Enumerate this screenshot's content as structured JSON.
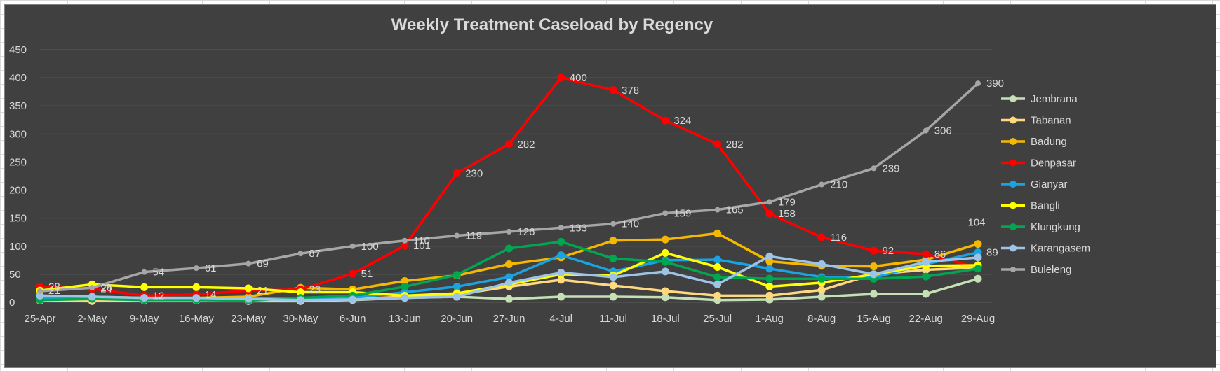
{
  "chart_data": {
    "type": "line",
    "title": "Weekly Treatment Caseload by Regency",
    "xlabel": "",
    "ylabel": "",
    "ylim": [
      0,
      450
    ],
    "yticks": [
      0,
      50,
      100,
      150,
      200,
      250,
      300,
      350,
      400,
      450
    ],
    "grid": true,
    "legend": "right",
    "categories": [
      "25-Apr",
      "2-May",
      "9-May",
      "16-May",
      "23-May",
      "30-May",
      "6-Jun",
      "13-Jun",
      "20-Jun",
      "27-Jun",
      "4-Jul",
      "11-Jul",
      "18-Jul",
      "25-Jul",
      "1-Aug",
      "8-Aug",
      "15-Aug",
      "22-Aug",
      "29-Aug"
    ],
    "series": [
      {
        "name": "Jembrana",
        "color": "#c5e0b4",
        "values": [
          4,
          4,
          3,
          3,
          2,
          2,
          4,
          8,
          10,
          6,
          10,
          10,
          9,
          4,
          5,
          10,
          15,
          15,
          42
        ],
        "labels": {}
      },
      {
        "name": "Tabanan",
        "color": "#ffd97f",
        "values": [
          3,
          2,
          4,
          4,
          6,
          6,
          6,
          10,
          14,
          28,
          40,
          30,
          20,
          12,
          12,
          22,
          50,
          58,
          62
        ],
        "labels": {}
      },
      {
        "name": "Badung",
        "color": "#f5b800",
        "values": [
          12,
          10,
          8,
          8,
          10,
          26,
          23,
          38,
          48,
          68,
          80,
          110,
          112,
          123,
          73,
          65,
          64,
          76,
          104
        ],
        "labels": {
          "18": 104
        }
      },
      {
        "name": "Denpasar",
        "color": "#ff0000",
        "values": [
          28,
          24,
          12,
          14,
          21,
          23,
          51,
          101,
          230,
          282,
          400,
          378,
          324,
          282,
          158,
          116,
          92,
          86,
          62
        ],
        "labels": {
          "0": 28,
          "1": 24,
          "2": 12,
          "3": 14,
          "4": 21,
          "5": 23,
          "6": 51,
          "7": 101,
          "8": 230,
          "9": 282,
          "10": 400,
          "11": 378,
          "12": 324,
          "13": 282,
          "14": 158,
          "15": 116,
          "16": 92,
          "17": 86
        }
      },
      {
        "name": "Gianyar",
        "color": "#1aa3e0",
        "values": [
          8,
          8,
          8,
          6,
          6,
          8,
          8,
          18,
          28,
          45,
          84,
          55,
          75,
          76,
          60,
          45,
          44,
          68,
          89
        ],
        "labels": {
          "18": 89
        }
      },
      {
        "name": "Bangli",
        "color": "#ffff00",
        "values": [
          21,
          32,
          27,
          27,
          25,
          18,
          18,
          12,
          16,
          32,
          50,
          48,
          88,
          63,
          28,
          35,
          50,
          65,
          66
        ],
        "labels": {
          "0": 21
        }
      },
      {
        "name": "Klungkung",
        "color": "#00a650",
        "values": [
          4,
          6,
          4,
          4,
          3,
          8,
          12,
          28,
          49,
          96,
          108,
          78,
          72,
          45,
          42,
          42,
          42,
          46,
          60
        ],
        "labels": {}
      },
      {
        "name": "Karangasem",
        "color": "#9dc3e6",
        "values": [
          12,
          10,
          8,
          8,
          6,
          4,
          5,
          8,
          10,
          35,
          53,
          45,
          55,
          32,
          82,
          68,
          50,
          72,
          80
        ],
        "labels": {}
      },
      {
        "name": "Buleleng",
        "color": "#a6a6a6",
        "values": [
          20,
          26,
          54,
          61,
          69,
          87,
          100,
          110,
          119,
          126,
          133,
          140,
          159,
          165,
          179,
          210,
          239,
          306,
          390
        ],
        "labels": {
          "1": 26,
          "2": 54,
          "3": 61,
          "4": 69,
          "5": 87,
          "6": 100,
          "7": 110,
          "8": 119,
          "9": 126,
          "10": 133,
          "11": 140,
          "12": 159,
          "13": 165,
          "14": 179,
          "15": 210,
          "16": 239,
          "17": 306,
          "18": 390
        }
      }
    ]
  }
}
